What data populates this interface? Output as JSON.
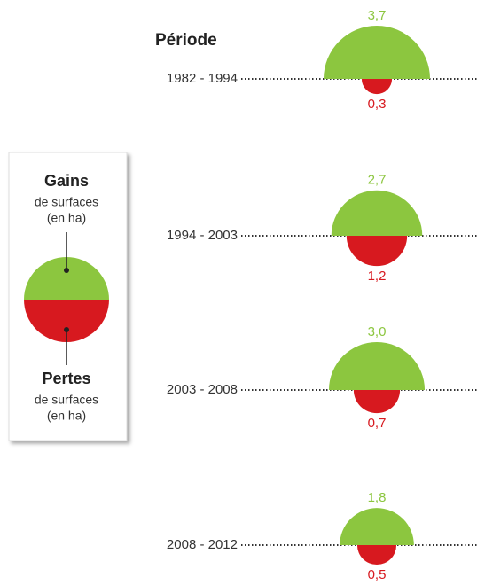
{
  "chart_data": {
    "type": "semicircle",
    "title": "Période",
    "categories": [
      "1982 - 1994",
      "1994 - 2003",
      "2003 - 2008",
      "2008 - 2012"
    ],
    "series": [
      {
        "name": "Gains",
        "note": [
          "de surfaces",
          "(en ha)"
        ],
        "color": "#8cc63f",
        "values": [
          3.7,
          2.7,
          3.0,
          1.8
        ],
        "value_labels": [
          "3,7",
          "2,7",
          "3,0",
          "1,8"
        ]
      },
      {
        "name": "Pertes",
        "note": [
          "de surfaces",
          "(en ha)"
        ],
        "color": "#d7191f",
        "values": [
          0.3,
          1.2,
          0.7,
          0.5
        ],
        "value_labels": [
          "0,3",
          "1,2",
          "0,7",
          "0,5"
        ]
      }
    ]
  }
}
